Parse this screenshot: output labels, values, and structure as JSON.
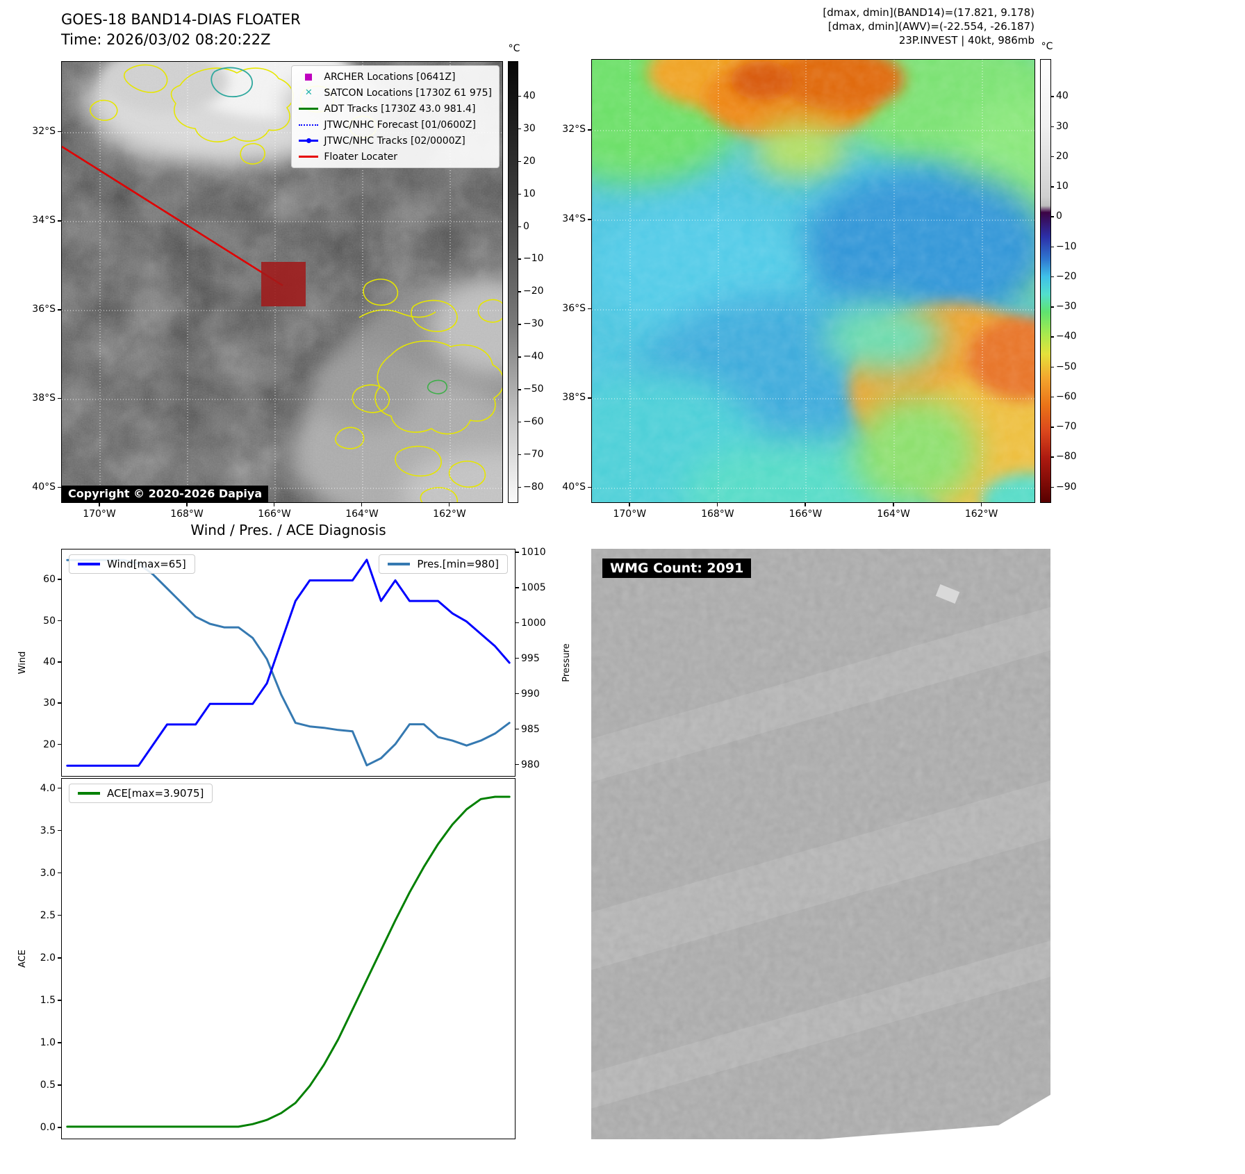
{
  "colors": {
    "wind_line": "#0000ff",
    "pres_line": "#3579b1",
    "ace_line": "#008000",
    "floater_line": "#e60000",
    "archer": "#bf00bf",
    "satcon": "#20b2aa",
    "adt": "#008000",
    "jtwc": "#0000ff"
  },
  "header": {
    "title": "GOES-18 BAND14-DIAS FLOATER",
    "time_line": "Time: 2026/03/02 08:20:22Z",
    "stats_line1": "[dmax, dmin](BAND14)=(17.821, 9.178)",
    "stats_line2": "[dmax, dmin](AWV)=(-22.554, -26.187)",
    "stats_line3": "23P.INVEST | 40kt, 986mb"
  },
  "ir_panel": {
    "copyright": "Copyright © 2020-2026 Dapiya",
    "colorbar_unit": "°C",
    "colorbar_ticks": [
      "40",
      "30",
      "20",
      "10",
      "0",
      "−10",
      "−20",
      "−30",
      "−40",
      "−50",
      "−60",
      "−70",
      "−80"
    ],
    "lat_ticks": [
      "32°S",
      "34°S",
      "36°S",
      "38°S",
      "40°S"
    ],
    "lon_ticks": [
      "170°W",
      "168°W",
      "166°W",
      "164°W",
      "162°W"
    ],
    "legend": [
      {
        "label": "ARCHER Locations [0641Z]",
        "marker": "square",
        "color_key": "archer"
      },
      {
        "label": "SATCON Locations [1730Z 61 975]",
        "marker": "x",
        "color_key": "satcon"
      },
      {
        "label": "ADT Tracks [1730Z 43.0 981.4]",
        "marker": "line",
        "color_key": "adt"
      },
      {
        "label": "JTWC/NHC Forecast [01/0600Z]",
        "marker": "dotted",
        "color_key": "jtwc"
      },
      {
        "label": "JTWC/NHC Tracks [02/0000Z]",
        "marker": "line-dot",
        "color_key": "jtwc"
      },
      {
        "label": "Floater Locater",
        "marker": "line",
        "color_key": "floater_line"
      }
    ]
  },
  "awv_panel": {
    "colorbar_unit": "°C",
    "colorbar_ticks": [
      "40",
      "30",
      "20",
      "10",
      "0",
      "−10",
      "−20",
      "−30",
      "−40",
      "−50",
      "−60",
      "−70",
      "−80",
      "−90"
    ],
    "lat_ticks": [
      "32°S",
      "34°S",
      "36°S",
      "38°S",
      "40°S"
    ],
    "lon_ticks": [
      "170°W",
      "168°W",
      "166°W",
      "164°W",
      "162°W"
    ]
  },
  "diagnosis": {
    "title": "Wind / Pres. / ACE Diagnosis",
    "wind_legend": "Wind[max=65]",
    "pres_legend": "Pres.[min=980]",
    "ace_legend": "ACE[max=3.9075]",
    "wind_axis": "Wind",
    "pressure_axis": "Pressure",
    "ace_axis": "ACE",
    "wind_ticks": [
      "20",
      "30",
      "40",
      "50",
      "60"
    ],
    "pressure_ticks": [
      "980",
      "985",
      "990",
      "995",
      "1000",
      "1005",
      "1010"
    ],
    "ace_ticks": [
      "0.0",
      "0.5",
      "1.0",
      "1.5",
      "2.0",
      "2.5",
      "3.0",
      "3.5",
      "4.0"
    ]
  },
  "wmg_panel": {
    "label": "WMG Count: 2091"
  },
  "chart_data": [
    {
      "type": "line",
      "title": "Wind / Pres. / ACE Diagnosis",
      "x_axis": {
        "visible": false,
        "n_points": 32
      },
      "legend_position": "top",
      "series": [
        {
          "name": "Wind",
          "legend": "Wind[max=65]",
          "color": "#0000ff",
          "y_axis": "left",
          "ylabel": "Wind",
          "ylim": [
            12.5,
            67.5
          ],
          "yticks": [
            20,
            30,
            40,
            50,
            60
          ],
          "max": 65,
          "values": [
            15,
            15,
            15,
            15,
            15,
            15,
            20,
            25,
            25,
            25,
            30,
            30,
            30,
            30,
            35,
            45,
            55,
            60,
            60,
            60,
            60,
            65,
            55,
            60,
            55,
            55,
            55,
            52,
            50,
            47,
            44,
            40
          ]
        },
        {
          "name": "Pres.",
          "legend": "Pres.[min=980]",
          "color": "#3579b1",
          "y_axis": "right",
          "ylabel": "Pressure",
          "ylim": [
            978.5,
            1010.5
          ],
          "yticks": [
            980,
            985,
            990,
            995,
            1000,
            1005,
            1010
          ],
          "min": 980,
          "values": [
            1009,
            1009,
            1009,
            1009,
            1009,
            1008.5,
            1007,
            1005,
            1003,
            1001,
            1000,
            999.5,
            999.5,
            998,
            995,
            990,
            986,
            985.5,
            985.3,
            985,
            984.8,
            980,
            981,
            983,
            985.8,
            985.8,
            984,
            983.5,
            982.8,
            983.5,
            984.5,
            986
          ]
        }
      ]
    },
    {
      "type": "line",
      "x_axis": {
        "visible": false,
        "n_points": 32
      },
      "legend_position": "top-left",
      "series": [
        {
          "name": "ACE",
          "legend": "ACE[max=3.9075]",
          "color": "#008000",
          "y_axis": "left",
          "ylabel": "ACE",
          "ylim": [
            -0.12,
            4.12
          ],
          "yticks": [
            0,
            0.5,
            1,
            1.5,
            2,
            2.5,
            3,
            3.5,
            4
          ],
          "max": 3.9075,
          "values": [
            0.02,
            0.02,
            0.02,
            0.02,
            0.02,
            0.02,
            0.02,
            0.02,
            0.02,
            0.02,
            0.02,
            0.02,
            0.02,
            0.05,
            0.1,
            0.18,
            0.3,
            0.5,
            0.75,
            1.05,
            1.4,
            1.75,
            2.1,
            2.45,
            2.78,
            3.08,
            3.35,
            3.58,
            3.76,
            3.88,
            3.9075,
            3.9075
          ]
        }
      ]
    }
  ]
}
